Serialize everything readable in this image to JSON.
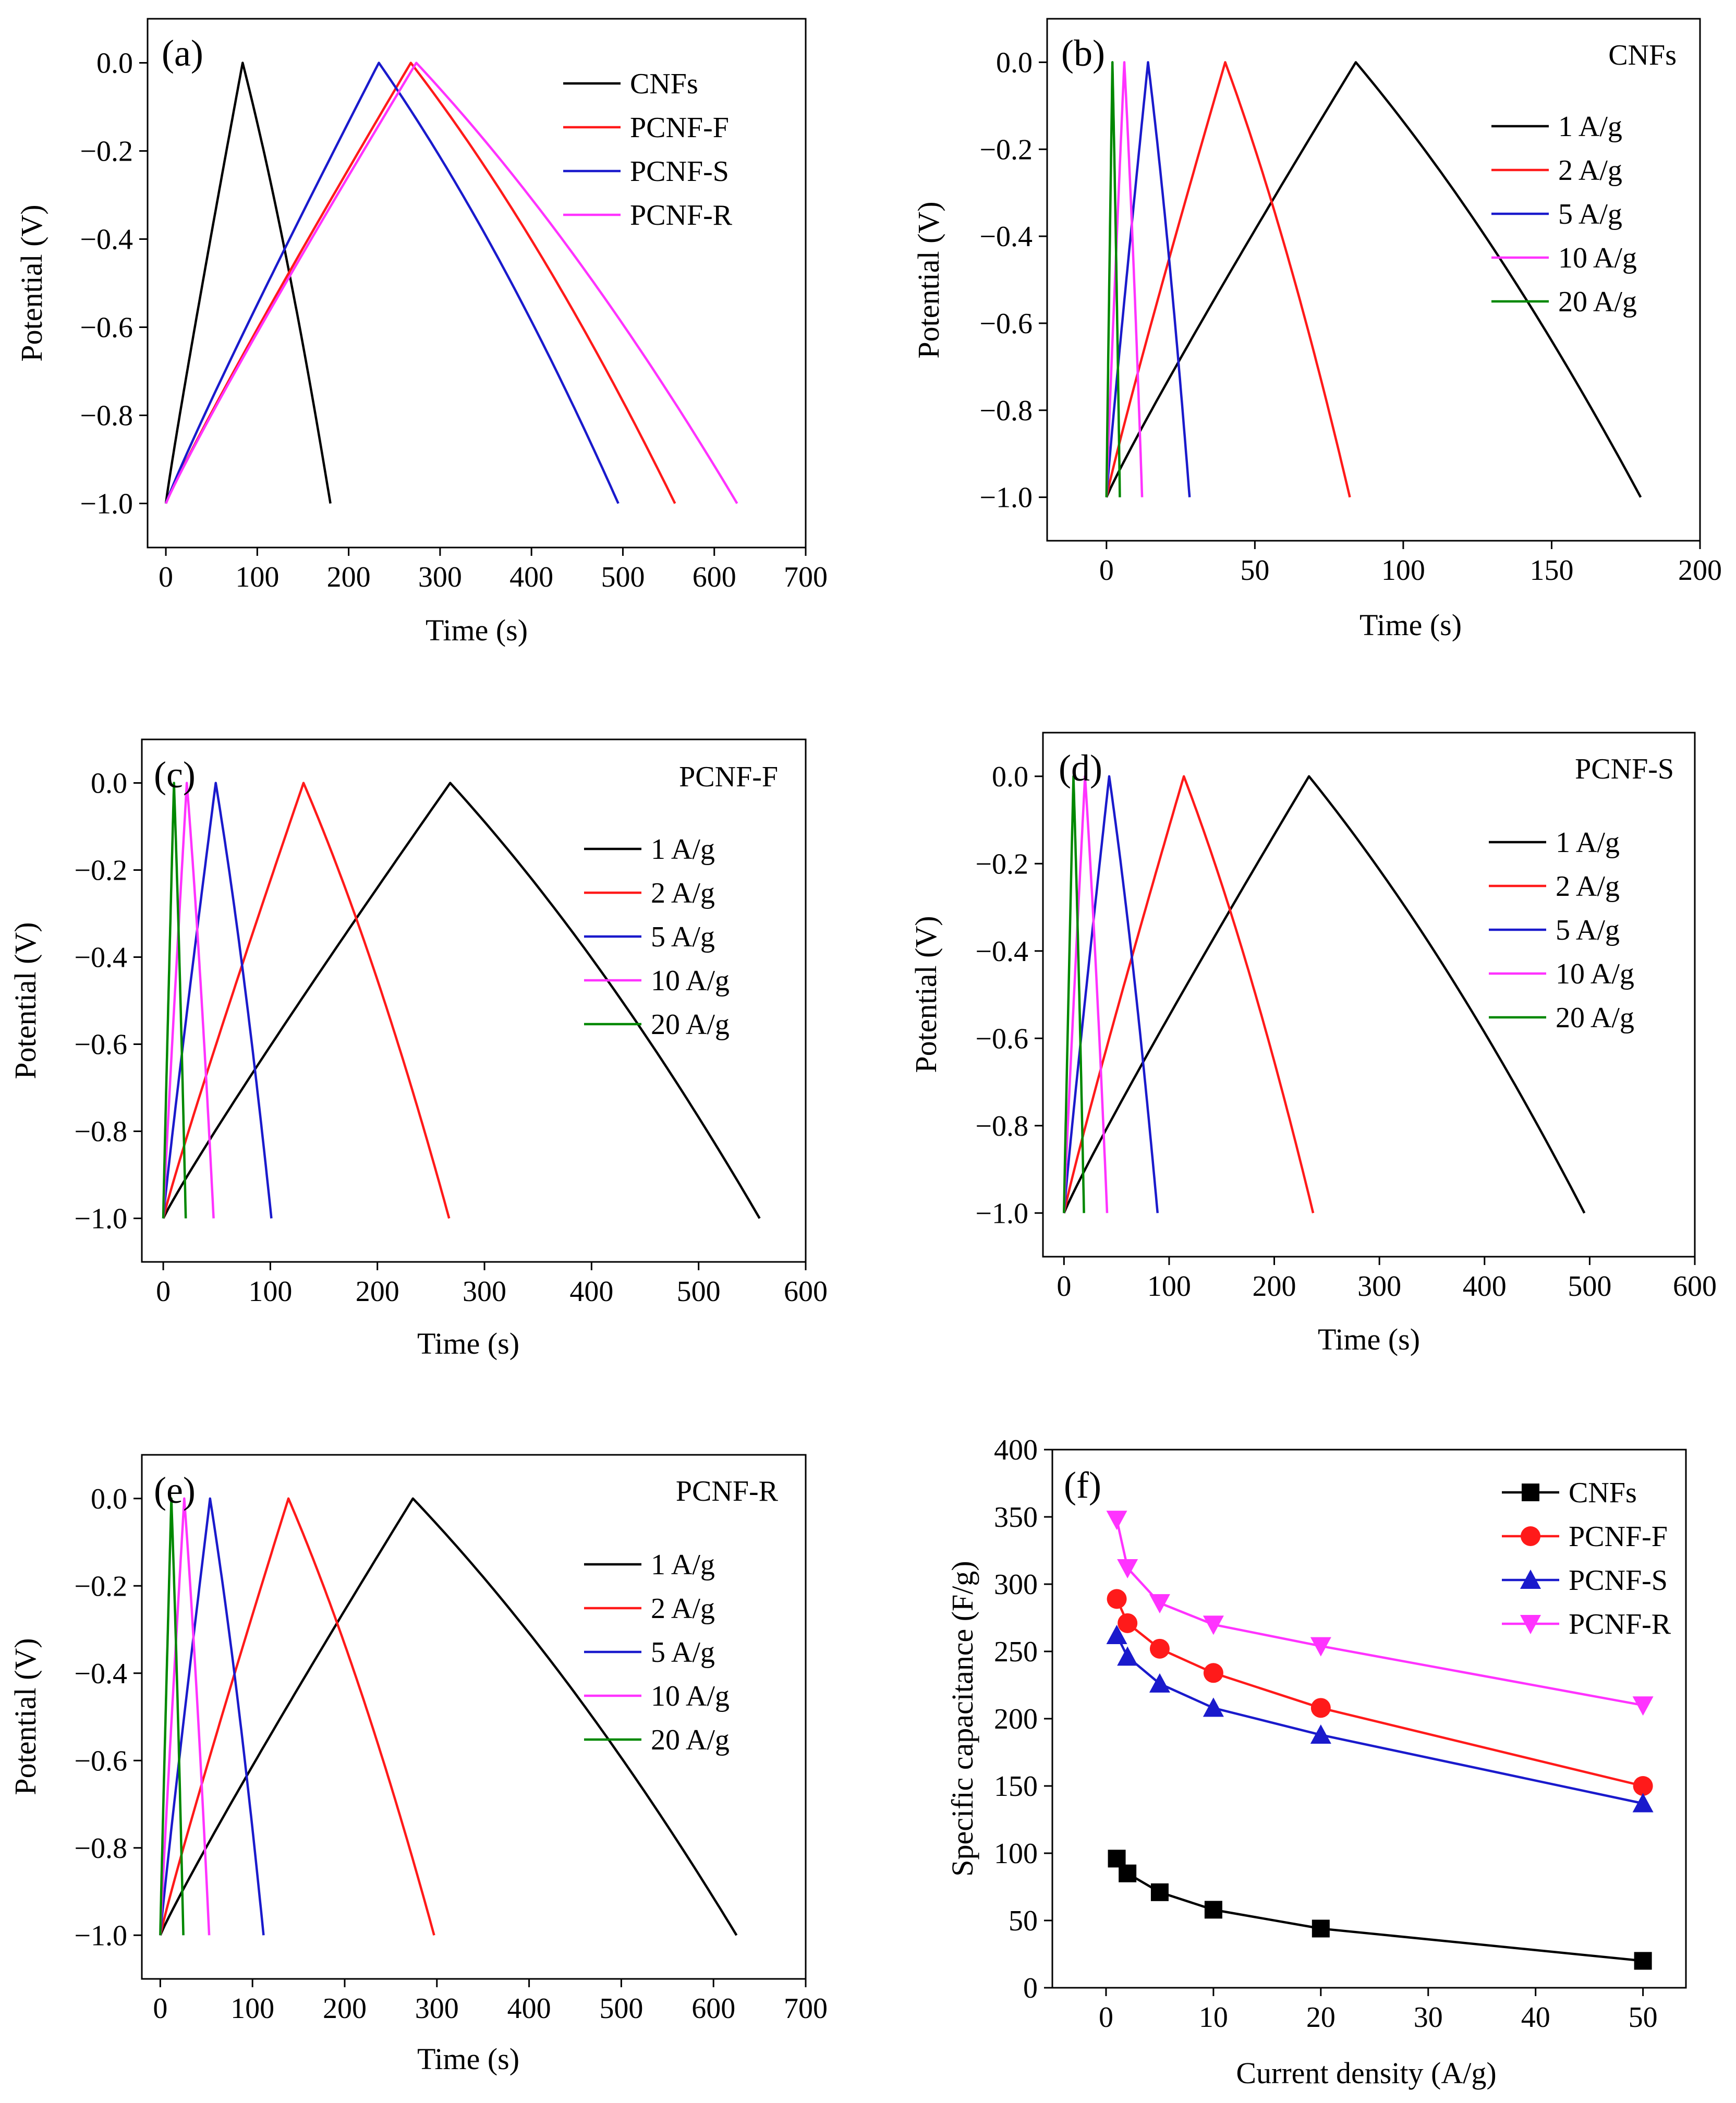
{
  "figure": {
    "colors": {
      "black": "#000000",
      "red": "#ff1a1a",
      "blue": "#1a1acc",
      "magenta": "#ff33ff",
      "green": "#008800"
    },
    "time_axis_label": "Time (s)",
    "potential_axis_label": "Potential (V)"
  },
  "chart_data": [
    {
      "id": "a",
      "type": "line",
      "panel_label": "(a)",
      "material_label": "",
      "xlabel": "Time (s)",
      "ylabel": "Potential (V)",
      "xlim": [
        -20,
        700
      ],
      "ylim": [
        -1.1,
        0.1
      ],
      "xticks": [
        0,
        100,
        200,
        300,
        400,
        500,
        600,
        700
      ],
      "yticks": [
        0.0,
        -0.2,
        -0.4,
        -0.6,
        -0.8,
        -1.0
      ],
      "xtick_labels": [
        "0",
        "100",
        "200",
        "300",
        "400",
        "500",
        "600",
        "700"
      ],
      "ytick_labels": [
        "0.0",
        "−0.2",
        "−0.4",
        "−0.6",
        "−0.8",
        "−1.0"
      ],
      "legend_position": "top-right",
      "series": [
        {
          "name": "CNFs",
          "color": "#000000",
          "charge_time": 84,
          "total_time": 180
        },
        {
          "name": "PCNF-F",
          "color": "#ff1a1a",
          "charge_time": 268,
          "total_time": 557
        },
        {
          "name": "PCNF-S",
          "color": "#1a1acc",
          "charge_time": 233,
          "total_time": 495
        },
        {
          "name": "PCNF-R",
          "color": "#ff33ff",
          "charge_time": 274,
          "total_time": 625
        }
      ]
    },
    {
      "id": "b",
      "type": "line",
      "panel_label": "(b)",
      "material_label": "CNFs",
      "xlabel": "Time (s)",
      "ylabel": "Potential (V)",
      "xlim": [
        -20,
        200
      ],
      "ylim": [
        -1.1,
        0.1
      ],
      "xticks": [
        0,
        50,
        100,
        150,
        200
      ],
      "yticks": [
        0.0,
        -0.2,
        -0.4,
        -0.6,
        -0.8,
        -1.0
      ],
      "xtick_labels": [
        "0",
        "50",
        "100",
        "150",
        "200"
      ],
      "ytick_labels": [
        "0.0",
        "−0.2",
        "−0.4",
        "−0.6",
        "−0.8",
        "−1.0"
      ],
      "legend_position": "top-right",
      "series": [
        {
          "name": "1 A/g",
          "color": "#000000",
          "charge_time": 84,
          "total_time": 180
        },
        {
          "name": "2 A/g",
          "color": "#ff1a1a",
          "charge_time": 40,
          "total_time": 82
        },
        {
          "name": "5 A/g",
          "color": "#1a1acc",
          "charge_time": 14,
          "total_time": 28
        },
        {
          "name": "10 A/g",
          "color": "#ff33ff",
          "charge_time": 6,
          "total_time": 12
        },
        {
          "name": "20 A/g",
          "color": "#008800",
          "charge_time": 2,
          "total_time": 4.5
        }
      ]
    },
    {
      "id": "c",
      "type": "line",
      "panel_label": "(c)",
      "material_label": "PCNF-F",
      "xlabel": "Time (s)",
      "ylabel": "Potential (V)",
      "xlim": [
        -20,
        600
      ],
      "ylim": [
        -1.1,
        0.1
      ],
      "xticks": [
        0,
        100,
        200,
        300,
        400,
        500,
        600
      ],
      "yticks": [
        0.0,
        -0.2,
        -0.4,
        -0.6,
        -0.8,
        -1.0
      ],
      "xtick_labels": [
        "0",
        "100",
        "200",
        "300",
        "400",
        "500",
        "600"
      ],
      "ytick_labels": [
        "0.0",
        "−0.2",
        "−0.4",
        "−0.6",
        "−0.8",
        "−1.0"
      ],
      "legend_position": "top-right",
      "series": [
        {
          "name": "1 A/g",
          "color": "#000000",
          "charge_time": 268,
          "total_time": 557
        },
        {
          "name": "2 A/g",
          "color": "#ff1a1a",
          "charge_time": 131,
          "total_time": 267
        },
        {
          "name": "5 A/g",
          "color": "#1a1acc",
          "charge_time": 49,
          "total_time": 101
        },
        {
          "name": "10 A/g",
          "color": "#ff33ff",
          "charge_time": 22,
          "total_time": 47
        },
        {
          "name": "20 A/g",
          "color": "#008800",
          "charge_time": 10,
          "total_time": 21
        }
      ]
    },
    {
      "id": "d",
      "type": "line",
      "panel_label": "(d)",
      "material_label": "PCNF-S",
      "xlabel": "Time (s)",
      "ylabel": "Potential (V)",
      "xlim": [
        -20,
        600
      ],
      "ylim": [
        -1.1,
        0.1
      ],
      "xticks": [
        0,
        100,
        200,
        300,
        400,
        500,
        600
      ],
      "yticks": [
        0.0,
        -0.2,
        -0.4,
        -0.6,
        -0.8,
        -1.0
      ],
      "xtick_labels": [
        "0",
        "100",
        "200",
        "300",
        "400",
        "500",
        "600"
      ],
      "ytick_labels": [
        "0.0",
        "−0.2",
        "−0.4",
        "−0.6",
        "−0.8",
        "−1.0"
      ],
      "legend_position": "top-right",
      "series": [
        {
          "name": "1 A/g",
          "color": "#000000",
          "charge_time": 233,
          "total_time": 495
        },
        {
          "name": "2 A/g",
          "color": "#ff1a1a",
          "charge_time": 114,
          "total_time": 237
        },
        {
          "name": "5 A/g",
          "color": "#1a1acc",
          "charge_time": 43,
          "total_time": 89
        },
        {
          "name": "10 A/g",
          "color": "#ff33ff",
          "charge_time": 20,
          "total_time": 41
        },
        {
          "name": "20 A/g",
          "color": "#008800",
          "charge_time": 9,
          "total_time": 19
        }
      ]
    },
    {
      "id": "e",
      "type": "line",
      "panel_label": "(e)",
      "material_label": "PCNF-R",
      "xlabel": "Time (s)",
      "ylabel": "Potential (V)",
      "xlim": [
        -20,
        700
      ],
      "ylim": [
        -1.1,
        0.1
      ],
      "xticks": [
        0,
        100,
        200,
        300,
        400,
        500,
        600,
        700
      ],
      "yticks": [
        0.0,
        -0.2,
        -0.4,
        -0.6,
        -0.8,
        -1.0
      ],
      "xtick_labels": [
        "0",
        "100",
        "200",
        "300",
        "400",
        "500",
        "600",
        "700"
      ],
      "ytick_labels": [
        "0.0",
        "−0.2",
        "−0.4",
        "−0.6",
        "−0.8",
        "−1.0"
      ],
      "legend_position": "top-right",
      "series": [
        {
          "name": "1 A/g",
          "color": "#000000",
          "charge_time": 274,
          "total_time": 625
        },
        {
          "name": "2 A/g",
          "color": "#ff1a1a",
          "charge_time": 139,
          "total_time": 297
        },
        {
          "name": "5 A/g",
          "color": "#1a1acc",
          "charge_time": 54,
          "total_time": 112
        },
        {
          "name": "10 A/g",
          "color": "#ff33ff",
          "charge_time": 26,
          "total_time": 53
        },
        {
          "name": "20 A/g",
          "color": "#008800",
          "charge_time": 12,
          "total_time": 25
        }
      ]
    },
    {
      "id": "f",
      "type": "scatter",
      "panel_label": "(f)",
      "material_label": "",
      "xlabel": "Current density (A/g)",
      "ylabel": "Specific capacitance (F/g)",
      "xlim": [
        -5,
        54
      ],
      "ylim": [
        0,
        400
      ],
      "xticks": [
        0,
        10,
        20,
        30,
        40,
        50
      ],
      "yticks": [
        0,
        50,
        100,
        150,
        200,
        250,
        300,
        350,
        400
      ],
      "xtick_labels": [
        "0",
        "10",
        "20",
        "30",
        "40",
        "50"
      ],
      "ytick_labels": [
        "0",
        "50",
        "100",
        "150",
        "200",
        "250",
        "300",
        "350",
        "400"
      ],
      "legend_position": "top-right",
      "x": [
        1,
        2,
        5,
        10,
        20,
        50
      ],
      "series": [
        {
          "name": "CNFs",
          "color": "#000000",
          "marker": "square",
          "values": [
            96,
            85,
            71,
            58,
            44,
            20
          ]
        },
        {
          "name": "PCNF-F",
          "color": "#ff1a1a",
          "marker": "circle",
          "values": [
            289,
            271,
            252,
            234,
            208,
            150
          ]
        },
        {
          "name": "PCNF-S",
          "color": "#1a1acc",
          "marker": "triangle-up",
          "values": [
            262,
            246,
            226,
            208,
            188,
            137
          ]
        },
        {
          "name": "PCNF-R",
          "color": "#ff33ff",
          "marker": "triangle-down",
          "values": [
            348,
            312,
            286,
            270,
            254,
            210
          ]
        }
      ]
    }
  ]
}
